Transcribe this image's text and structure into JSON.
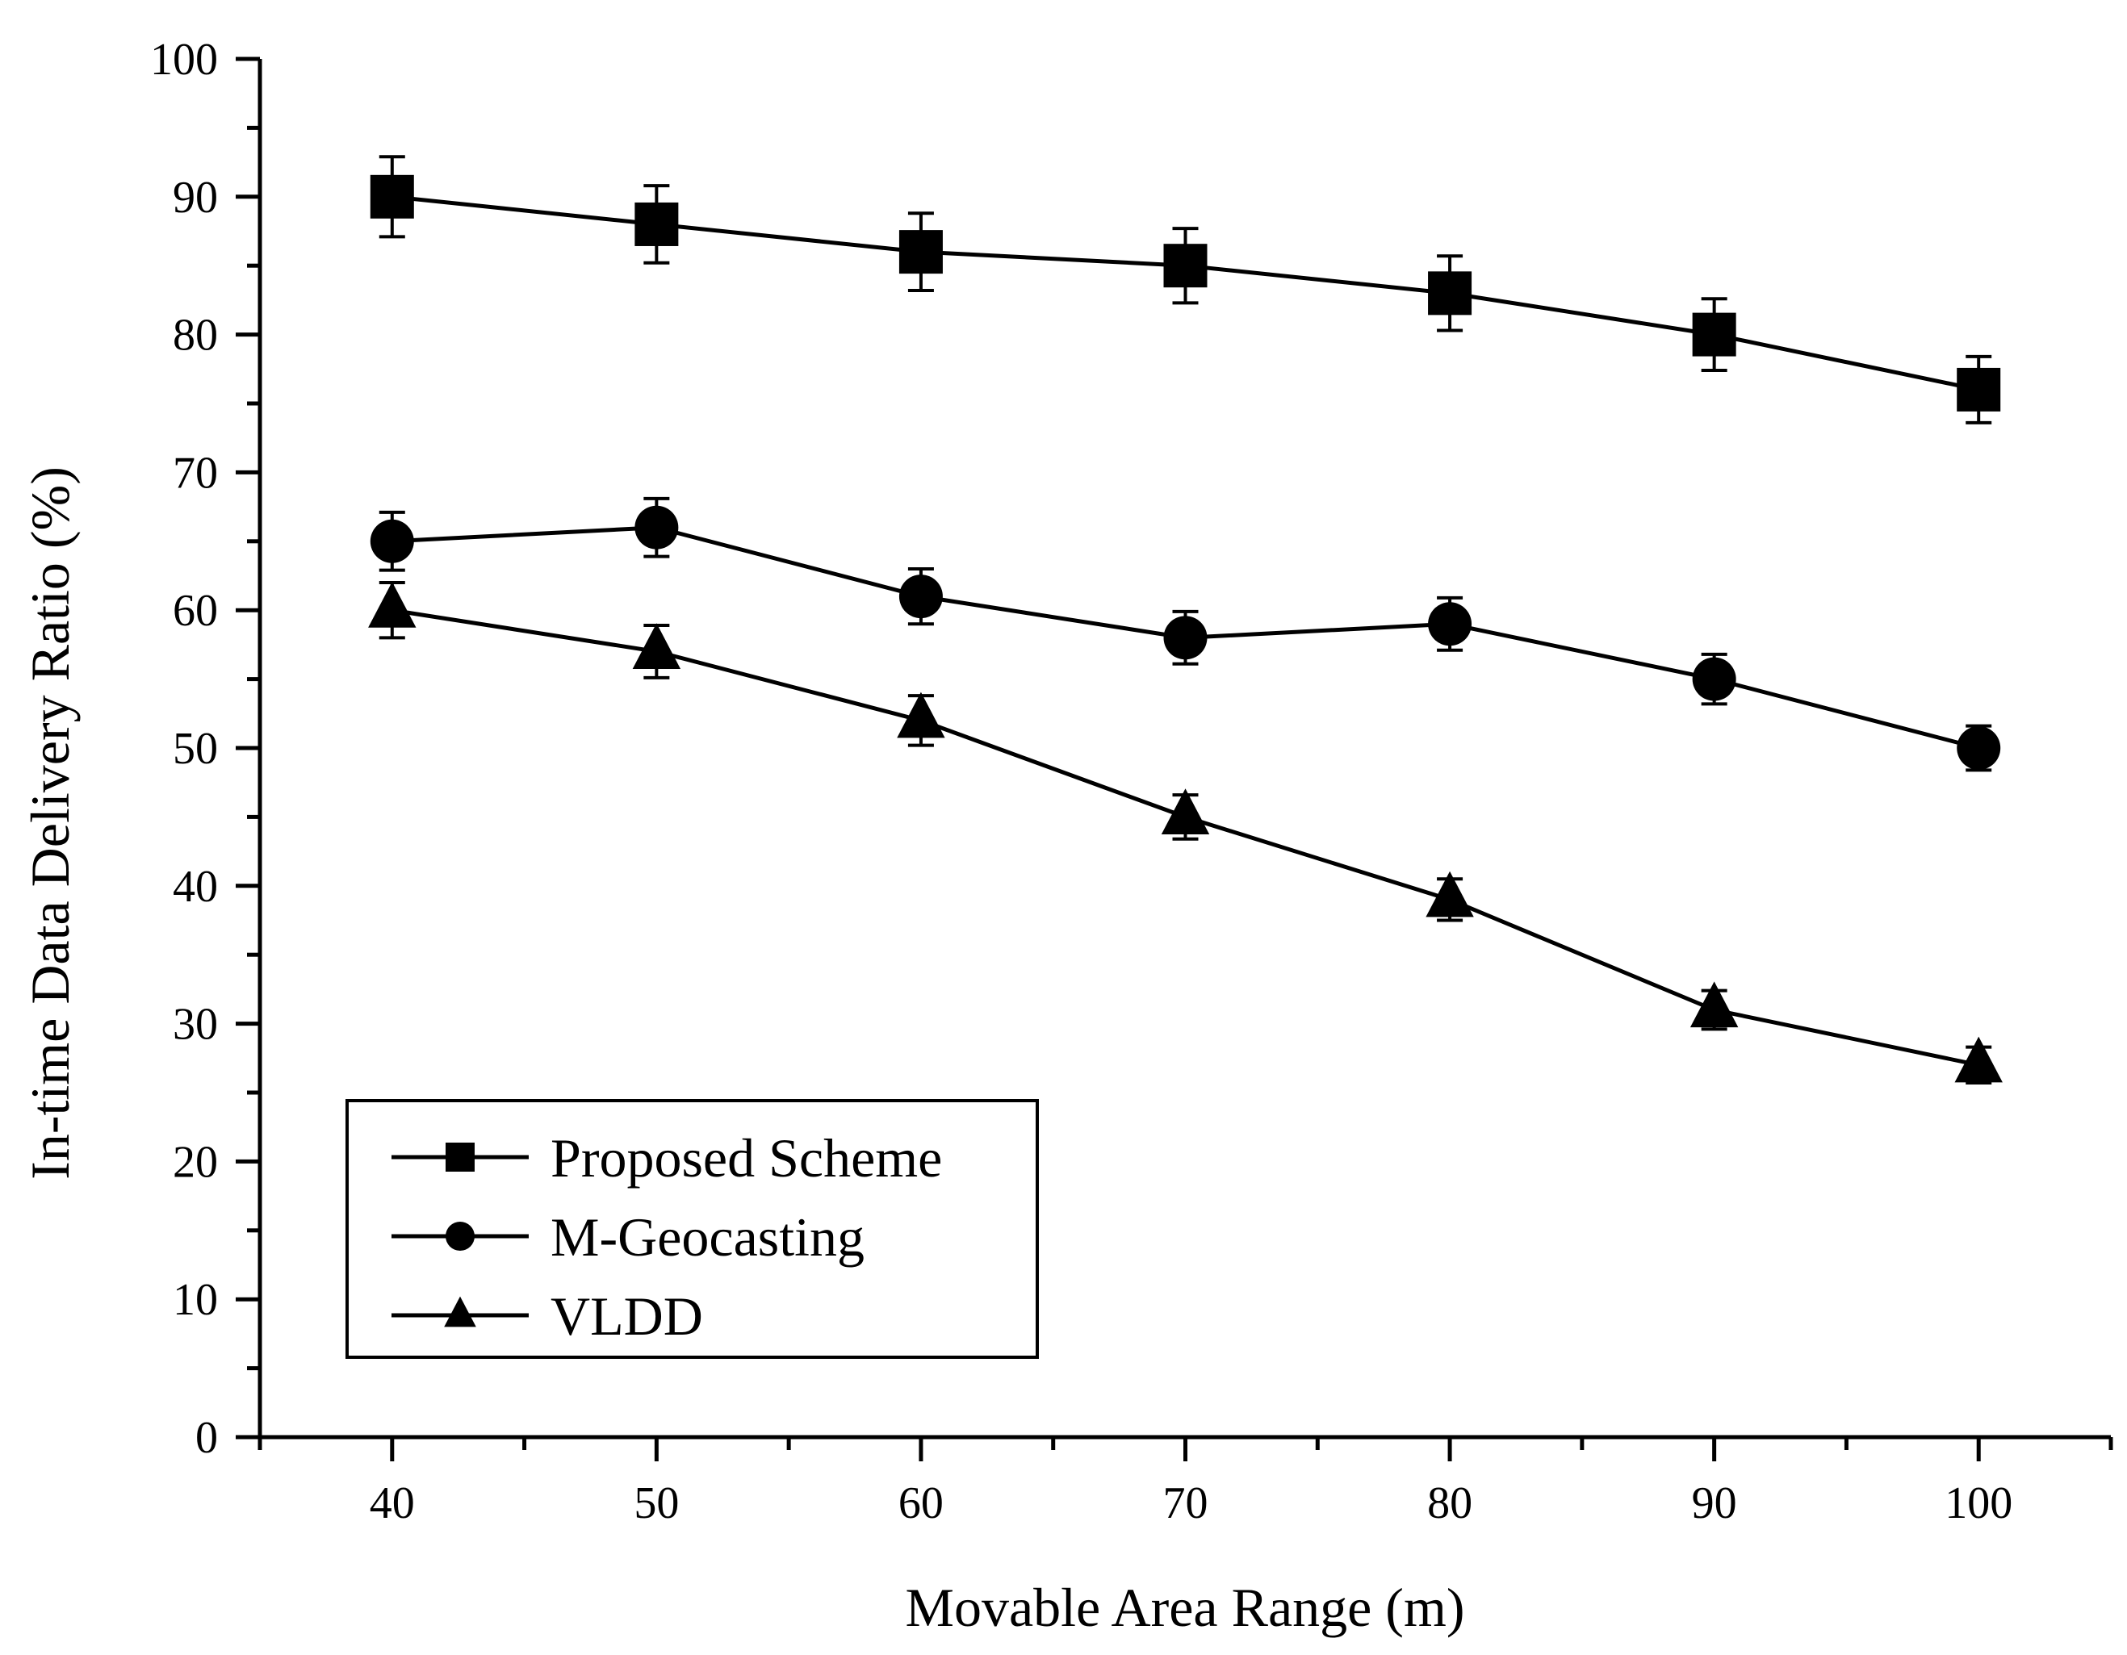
{
  "chart_data": {
    "type": "line",
    "title": "",
    "xlabel": "Movable Area Range (m)",
    "ylabel": "In-time Data Delivery Ratio (%)",
    "x": [
      40,
      50,
      60,
      70,
      80,
      90,
      100
    ],
    "xlim": [
      35,
      105
    ],
    "ylim": [
      0,
      100
    ],
    "xticks": [
      40,
      50,
      60,
      70,
      80,
      90,
      100
    ],
    "yticks": [
      0,
      10,
      20,
      30,
      40,
      50,
      60,
      70,
      80,
      90,
      100
    ],
    "grid": false,
    "legend_position": "bottom-left",
    "series": [
      {
        "name": "Proposed Scheme",
        "marker": "square",
        "values": [
          90,
          88,
          86,
          85,
          83,
          80,
          76
        ],
        "error": [
          2.9,
          2.8,
          2.8,
          2.7,
          2.7,
          2.6,
          2.4
        ]
      },
      {
        "name": "M-Geocasting",
        "marker": "circle",
        "values": [
          65,
          66,
          61,
          58,
          59,
          55,
          50
        ],
        "error": [
          2.1,
          2.1,
          2.0,
          1.9,
          1.9,
          1.8,
          1.6
        ]
      },
      {
        "name": "VLDD",
        "marker": "triangle",
        "values": [
          60,
          57,
          52,
          45,
          39,
          31,
          27
        ],
        "error": [
          2.0,
          1.9,
          1.8,
          1.6,
          1.5,
          1.4,
          1.3
        ]
      }
    ]
  }
}
